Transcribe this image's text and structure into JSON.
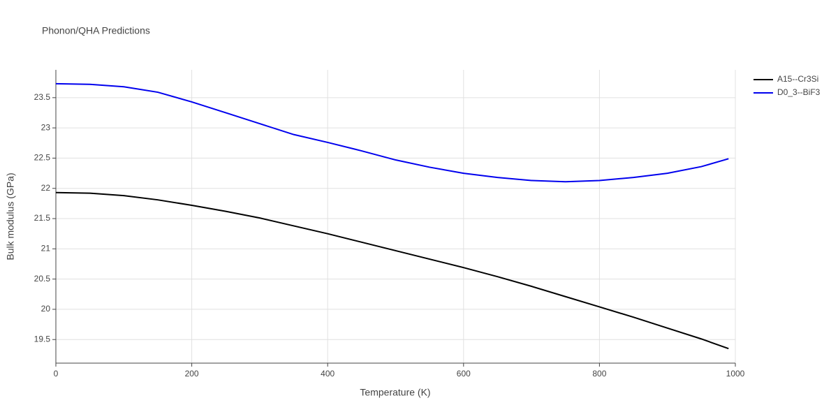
{
  "chart_data": {
    "type": "line",
    "title": "Phonon/QHA Predictions",
    "x_label": "Temperature (K)",
    "y_label": "Bulk modulus (GPa)",
    "x": [
      0,
      50,
      100,
      150,
      200,
      250,
      300,
      350,
      400,
      450,
      500,
      550,
      600,
      650,
      700,
      750,
      800,
      850,
      900,
      950,
      990
    ],
    "series": [
      {
        "name": "A15--Cr3Si",
        "color": "#000000",
        "values": [
          21.93,
          21.92,
          21.88,
          21.81,
          21.72,
          21.62,
          21.51,
          21.38,
          21.25,
          21.11,
          20.97,
          20.83,
          20.69,
          20.54,
          20.38,
          20.21,
          20.04,
          19.87,
          19.69,
          19.51,
          19.35
        ]
      },
      {
        "name": "D0_3--BiF3",
        "color": "#0000ee",
        "values": [
          23.73,
          23.72,
          23.68,
          23.59,
          23.43,
          23.25,
          23.07,
          22.89,
          22.76,
          22.62,
          22.47,
          22.35,
          22.25,
          22.18,
          22.13,
          22.11,
          22.13,
          22.18,
          22.25,
          22.36,
          22.49
        ]
      }
    ],
    "xlim": [
      0,
      1000
    ],
    "xticks": [
      0,
      200,
      400,
      600,
      800,
      1000
    ],
    "ylim": [
      19.11,
      23.96
    ],
    "yticks": [
      19.5,
      20,
      20.5,
      21,
      21.5,
      22,
      22.5,
      23,
      23.5
    ],
    "grid": true,
    "legend": "top-right"
  }
}
